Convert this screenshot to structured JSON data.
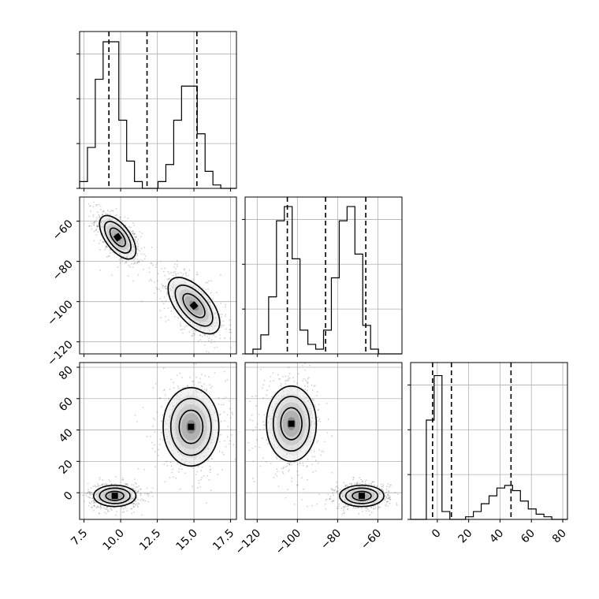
{
  "chart_data": {
    "type": "corner",
    "grid": true,
    "parameters": [
      {
        "id": "p1",
        "ticks": [
          7.5,
          10.0,
          12.5,
          15.0,
          17.5
        ],
        "tick_labels": [
          "7.5",
          "10.0",
          "12.5",
          "15.0",
          "17.5"
        ],
        "range": [
          7.2,
          17.9
        ]
      },
      {
        "id": "p2",
        "ticks": [
          -120,
          -100,
          -80,
          -60
        ],
        "tick_labels": [
          "−120",
          "−100",
          "−80",
          "−60"
        ],
        "range": [
          -126,
          -48
        ]
      },
      {
        "id": "p3",
        "ticks": [
          0,
          20,
          40,
          60,
          80
        ],
        "tick_labels": [
          "0",
          "20",
          "40",
          "60",
          "80"
        ],
        "range": [
          -17,
          83
        ]
      }
    ],
    "histograms": [
      {
        "param": 0,
        "bin_start": 7.2,
        "bin_width": 0.535,
        "counts": [
          2,
          12,
          32,
          43,
          43,
          20,
          8,
          2,
          0,
          0,
          2,
          7,
          20,
          30,
          30,
          16,
          5,
          1,
          0,
          0
        ],
        "quantiles": [
          9.2,
          11.8,
          15.2
        ],
        "ymax": 46
      },
      {
        "param": 1,
        "bin_start": -126,
        "bin_width": 3.9,
        "counts": [
          0,
          1,
          4,
          12,
          28,
          31,
          20,
          5,
          2,
          1,
          5,
          16,
          28,
          31,
          21,
          6,
          1,
          0,
          0,
          0
        ],
        "quantiles": [
          -105,
          -86,
          -66
        ],
        "ymax": 33
      },
      {
        "param": 2,
        "bin_start": -17,
        "bin_width": 5,
        "counts": [
          0,
          0,
          38,
          55,
          3,
          0,
          0,
          1,
          3,
          6,
          9,
          12,
          13,
          11,
          7,
          4,
          2,
          1,
          0,
          0
        ],
        "quantiles": [
          -3,
          9,
          47
        ],
        "ymax": 60
      }
    ],
    "pairs": [
      {
        "x": 0,
        "y": 1,
        "rho": -0.6,
        "modes": [
          {
            "center": [
              9.8,
              -68
            ],
            "sigma": [
              0.62,
              5.4
            ],
            "weight": 0.5
          },
          {
            "center": [
              15.0,
              -102
            ],
            "sigma": [
              0.88,
              7.0
            ],
            "weight": 0.5
          }
        ]
      },
      {
        "x": 0,
        "y": 2,
        "rho": 0.0,
        "modes": [
          {
            "center": [
              9.6,
              -2
            ],
            "sigma": [
              0.72,
              3.4
            ],
            "weight": 0.52
          },
          {
            "center": [
              14.8,
              42
            ],
            "sigma": [
              0.95,
              12.5
            ],
            "weight": 0.48
          }
        ]
      },
      {
        "x": 1,
        "y": 2,
        "rho": 0.0,
        "modes": [
          {
            "center": [
              -103,
              44
            ],
            "sigma": [
              6.2,
              12.0
            ],
            "weight": 0.48
          },
          {
            "center": [
              -68,
              -2
            ],
            "sigma": [
              5.5,
              3.4
            ],
            "weight": 0.52
          }
        ]
      }
    ]
  }
}
